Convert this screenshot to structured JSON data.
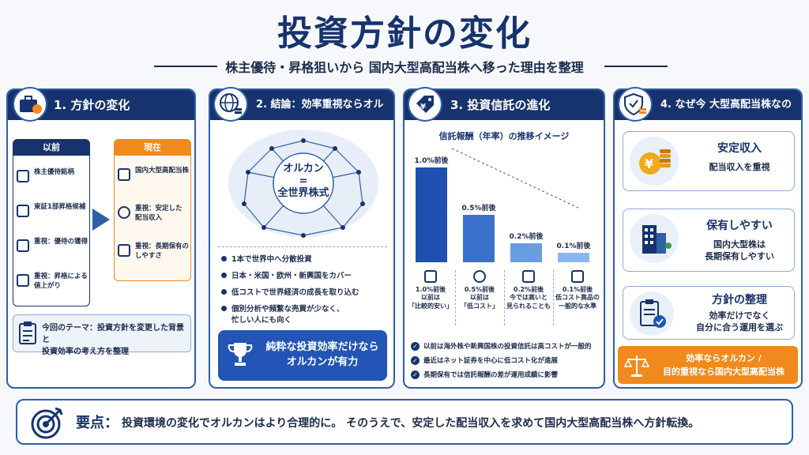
{
  "header": {
    "title": "投資方針の変化",
    "subtitle": "株主優待・昇格狙いから 国内大型高配当株へ移った理由を整理"
  },
  "panel1": {
    "heading": "1. 方針の変化",
    "before_label": "以前",
    "before_items": [
      "株主優待銘柄",
      "東証1部昇格候補",
      "重視：優待の獲得",
      "重視：昇格による\n値上がり"
    ],
    "after_label": "現在",
    "after_items": [
      "国内大型高配当株",
      "重視：安定した\n配当収入",
      "重視：長期保有の\nしやすさ"
    ],
    "theme": "今回のテーマ：投資方針を変更した背景と\n投資効率の考え方を整理"
  },
  "panel2": {
    "heading": "2. 結論：効率重視ならオルカン",
    "globe_line1": "オルカン",
    "globe_line2": "=",
    "globe_line3": "全世界株式",
    "bullets": [
      "1本で世界中へ分散投資",
      "日本・米国・欧州・新興国をカバー",
      "低コストで世界経済の成長を取り込む",
      "個別分析や頻繁な売買が少なく、\n忙しい人にも向く"
    ],
    "callout": "純粋な投資効率だけなら\nオルカンが有力"
  },
  "panel3": {
    "heading": "3. 投資信託の進化",
    "chart_title": "信託報酬（年率）の推移イメージ",
    "mini_labels": [
      "1.0%前後\n以前は\n「比較的安い」",
      "0.5%前後\n以前は\n「低コスト」",
      "0.2%前後\n今では高いと\n見られることも",
      "0.1%前後\n低コスト高品の\n一般的な水準"
    ],
    "checks": [
      "以前は海外株や新興国株の投資信託は高コストが一般的",
      "最近はネット証券を中心に低コスト化が進展",
      "長期保有では信託報酬の差が運用成績に影響"
    ]
  },
  "chart_data": {
    "type": "bar",
    "title": "信託報酬（年率）の推移イメージ",
    "categories": [
      "以前は「比較的安い」",
      "以前は「低コスト」",
      "今では高いと見られることも",
      "低コスト高品の一般的な水準"
    ],
    "values": [
      1.0,
      0.5,
      0.2,
      0.1
    ],
    "value_labels": [
      "1.0%前後",
      "0.5%前後",
      "0.2%前後",
      "0.1%前後"
    ],
    "ylim": [
      0,
      1.0
    ],
    "colors": [
      "#1f4fb0",
      "#3b70cc",
      "#6a9ce0",
      "#8ab8ee"
    ]
  },
  "panel4": {
    "heading": "4. なぜ今 大型高配当株なのか",
    "cards": [
      {
        "title": "安定収入",
        "desc": "配当収入を重視"
      },
      {
        "title": "保有しやすい",
        "desc": "国内大型株は\n長期保有しやすい"
      },
      {
        "title": "方針の整理",
        "desc": "効率だけでなく\n自分に合う運用を選ぶ"
      }
    ],
    "banner": "効率ならオルカン /\n目的重視なら国内大型高配当株"
  },
  "footer": {
    "label": "要点：",
    "text": "投資環境の変化でオルカンはより合理的に。 そのうえで、安定した配当収入を求めて国内大型高配当株へ方針転換。"
  },
  "colors": {
    "navy": "#17336d",
    "blue": "#2255b5",
    "orange": "#f08a1c"
  }
}
